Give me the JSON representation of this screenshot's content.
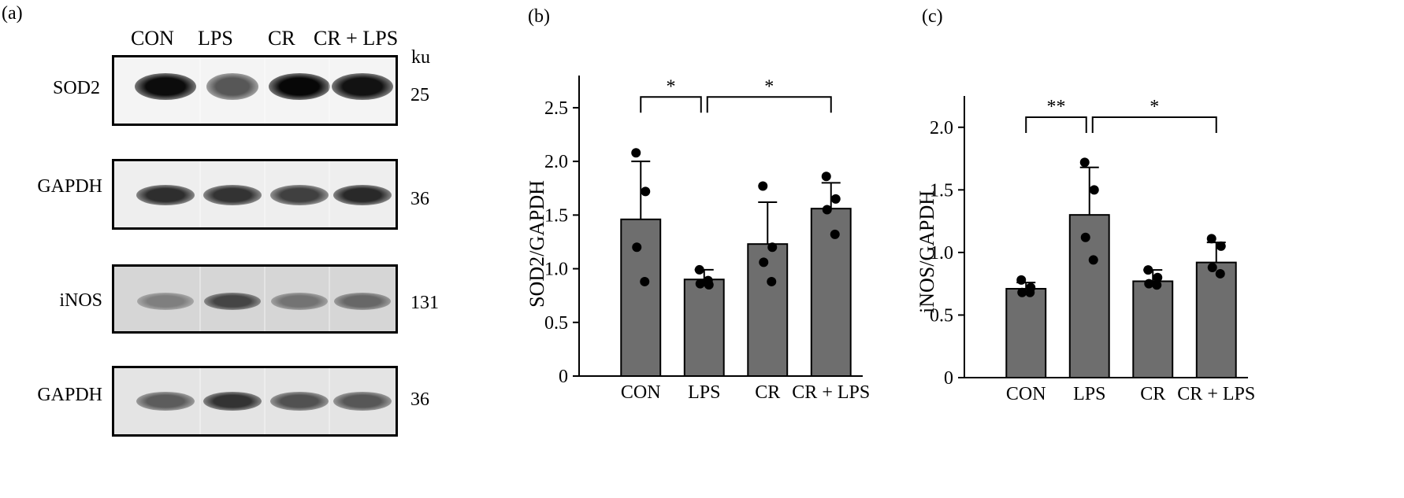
{
  "panel_a": {
    "label": "(a)",
    "lanes": [
      "CON",
      "LPS",
      "CR",
      "CR + LPS"
    ],
    "unit": "ku",
    "blots": [
      {
        "name": "SOD2",
        "size": "25",
        "band_intensity": [
          0.95,
          0.62,
          0.97,
          0.92
        ]
      },
      {
        "name": "GAPDH",
        "size": "36",
        "band_intensity": [
          0.8,
          0.78,
          0.72,
          0.82
        ]
      },
      {
        "name": "iNOS",
        "size": "131",
        "band_intensity": [
          0.45,
          0.7,
          0.5,
          0.55
        ]
      },
      {
        "name": "GAPDH",
        "size": "36",
        "band_intensity": [
          0.6,
          0.78,
          0.65,
          0.62
        ]
      }
    ]
  },
  "chart_data": [
    {
      "panel": "(b)",
      "type": "bar",
      "categories": [
        "CON",
        "LPS",
        "CR",
        "CR + LPS"
      ],
      "values": [
        1.46,
        0.9,
        1.23,
        1.56
      ],
      "error_upper": [
        2.0,
        0.99,
        1.62,
        1.8
      ],
      "points": [
        [
          2.08,
          1.72,
          1.2,
          0.88
        ],
        [
          0.99,
          0.85,
          0.86,
          0.89
        ],
        [
          1.77,
          1.2,
          1.06,
          0.88
        ],
        [
          1.86,
          1.65,
          1.55,
          1.32
        ]
      ],
      "ylabel": "SOD2/GAPDH",
      "ylim": [
        0,
        2.8
      ],
      "yticks": [
        0,
        0.5,
        1.0,
        1.5,
        2.0,
        2.5
      ],
      "ytick_labels": [
        "0",
        "0.5",
        "1.0",
        "1.5",
        "2.0",
        "2.5"
      ],
      "bar_color": "#6e6e6e",
      "significance": [
        {
          "from": 0,
          "to": 1,
          "label": "*",
          "y": 2.6
        },
        {
          "from": 1,
          "to": 3,
          "label": "*",
          "y": 2.6
        }
      ]
    },
    {
      "panel": "(c)",
      "type": "bar",
      "categories": [
        "CON",
        "LPS",
        "CR",
        "CR + LPS"
      ],
      "values": [
        0.71,
        1.3,
        0.77,
        0.92
      ],
      "error_upper": [
        0.76,
        1.68,
        0.86,
        1.08
      ],
      "points": [
        [
          0.78,
          0.72,
          0.68,
          0.68
        ],
        [
          1.72,
          1.5,
          1.12,
          0.94
        ],
        [
          0.86,
          0.8,
          0.75,
          0.74
        ],
        [
          1.11,
          1.05,
          0.88,
          0.83
        ]
      ],
      "ylabel": "iNOS/GAPDH",
      "ylim": [
        0,
        2.25
      ],
      "yticks": [
        0,
        0.5,
        1.0,
        1.5,
        2.0
      ],
      "ytick_labels": [
        "0",
        "0.5",
        "1.0",
        "1.5",
        "2.0"
      ],
      "bar_color": "#6e6e6e",
      "significance": [
        {
          "from": 0,
          "to": 1,
          "label": "**",
          "y": 2.08
        },
        {
          "from": 1,
          "to": 3,
          "label": "*",
          "y": 2.08
        }
      ]
    }
  ]
}
